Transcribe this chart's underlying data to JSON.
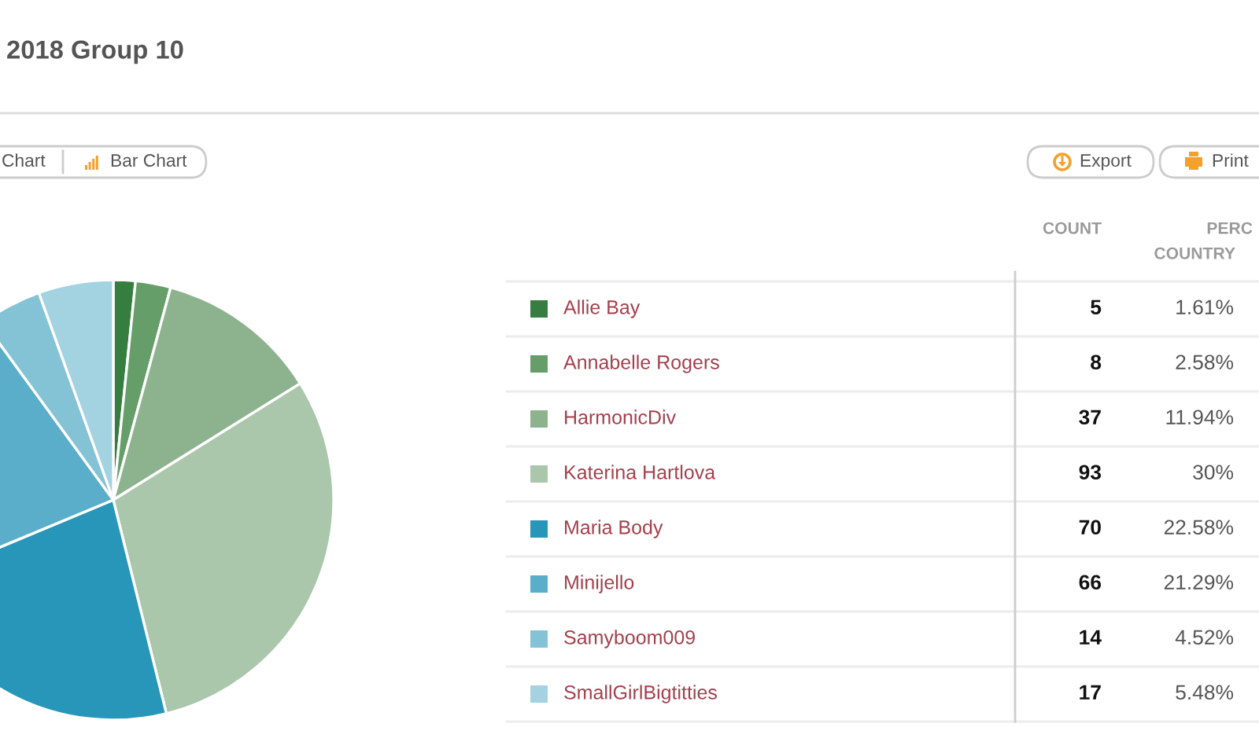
{
  "chart_data": {
    "type": "pie",
    "title": "2018 Group 10",
    "categories": [
      "Allie Bay",
      "Annabelle Rogers",
      "HarmonicDiv",
      "Katerina Hartlova",
      "Maria Body",
      "Minijello",
      "Samyboom009",
      "SmallGirlBigtitties"
    ],
    "values": [
      5,
      8,
      37,
      93,
      70,
      66,
      14,
      17
    ],
    "colors": [
      "#367e3f",
      "#669e6a",
      "#8db38e",
      "#aac6ab",
      "#2896b8",
      "#5aaec9",
      "#84c2d5",
      "#a3d2e0"
    ],
    "legend": "right",
    "data_labels": true,
    "annotations": [
      "Chart",
      "Bar Chart",
      "Export",
      "Print",
      "COUNT",
      "PERC",
      "COUNTRY",
      "1.61%",
      "2.58%",
      "11.94%",
      "30%",
      "22.58%",
      "21.29%",
      "4.52%",
      "5.48%"
    ]
  }
}
